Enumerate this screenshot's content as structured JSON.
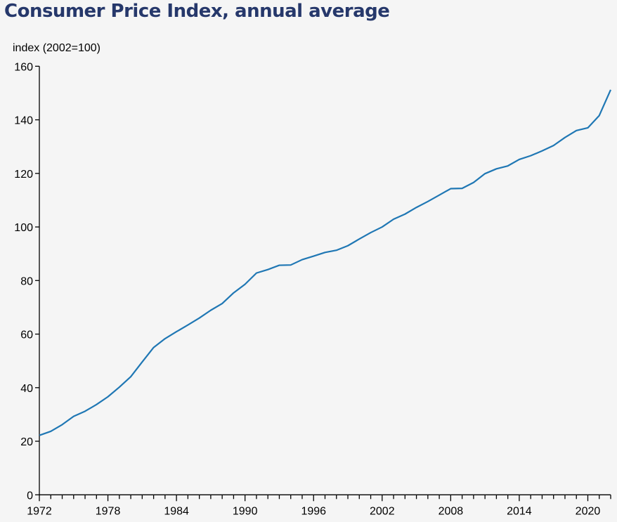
{
  "chart_data": {
    "type": "line",
    "title": "Consumer Price Index, annual average",
    "xlabel": "",
    "ylabel": "index (2002=100)",
    "xlim": [
      1972,
      2022
    ],
    "ylim": [
      0,
      160
    ],
    "grid": false,
    "legend": null,
    "x_ticks": [
      1972,
      1978,
      1984,
      1990,
      1996,
      2002,
      2008,
      2014,
      2020
    ],
    "y_ticks": [
      0,
      20,
      40,
      60,
      80,
      100,
      120,
      140,
      160
    ],
    "line_color": "#1f77b4",
    "series": [
      {
        "name": "CPI",
        "x": [
          1972,
          1973,
          1974,
          1975,
          1976,
          1977,
          1978,
          1979,
          1980,
          1981,
          1982,
          1983,
          1984,
          1985,
          1986,
          1987,
          1988,
          1989,
          1990,
          1991,
          1992,
          1993,
          1994,
          1995,
          1996,
          1997,
          1998,
          1999,
          2000,
          2001,
          2002,
          2003,
          2004,
          2005,
          2006,
          2007,
          2008,
          2009,
          2010,
          2011,
          2012,
          2013,
          2014,
          2015,
          2016,
          2017,
          2018,
          2019,
          2020,
          2021,
          2022
        ],
        "values": [
          22.2,
          23.7,
          26.2,
          29.3,
          31.2,
          33.7,
          36.6,
          40.2,
          44.1,
          49.6,
          55.0,
          58.3,
          60.9,
          63.4,
          66.0,
          68.9,
          71.4,
          75.4,
          78.6,
          82.8,
          84.1,
          85.7,
          85.8,
          87.8,
          89.1,
          90.5,
          91.3,
          93.0,
          95.5,
          97.9,
          100.0,
          102.9,
          104.8,
          107.3,
          109.5,
          111.9,
          114.3,
          114.4,
          116.6,
          119.9,
          121.7,
          122.8,
          125.2,
          126.6,
          128.4,
          130.4,
          133.4,
          136.0,
          137.0,
          141.6,
          151.2
        ]
      }
    ]
  }
}
